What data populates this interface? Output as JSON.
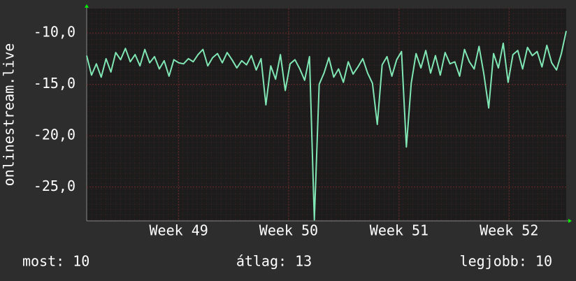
{
  "chart_data": {
    "type": "line",
    "ylabel": "onlinestream.live",
    "x": [
      0,
      1,
      2,
      3,
      4,
      5,
      6,
      7,
      8,
      9,
      10,
      11,
      12,
      13,
      14,
      15,
      16,
      17,
      18,
      19,
      20,
      21,
      22,
      23,
      24,
      25,
      26,
      27,
      28,
      29,
      30,
      31,
      32,
      33,
      34,
      35,
      36,
      37,
      38,
      39,
      40,
      41,
      42,
      43,
      44,
      45,
      46,
      47,
      48,
      49,
      50,
      51,
      52,
      53,
      54,
      55,
      56,
      57,
      58,
      59,
      60,
      61,
      62,
      63,
      64,
      65,
      66,
      67,
      68,
      69,
      70,
      71,
      72,
      73,
      74,
      75,
      76,
      77,
      78,
      79,
      80,
      81,
      82,
      83,
      84,
      85,
      86,
      87,
      88,
      89,
      90,
      91,
      92,
      93,
      94,
      95,
      96,
      97,
      98,
      99
    ],
    "series": [
      {
        "color": "#7fe6b4",
        "values": [
          -12.2,
          -14.1,
          -13.0,
          -14.3,
          -12.5,
          -13.8,
          -11.9,
          -12.6,
          -11.5,
          -12.8,
          -12.1,
          -13.2,
          -11.6,
          -12.9,
          -12.3,
          -13.5,
          -12.7,
          -14.2,
          -12.6,
          -12.9,
          -13.0,
          -12.5,
          -12.8,
          -12.1,
          -11.6,
          -13.2,
          -12.4,
          -12.0,
          -12.9,
          -11.9,
          -12.6,
          -13.4,
          -12.7,
          -13.1,
          -12.2,
          -13.6,
          -12.5,
          -17.0,
          -13.2,
          -14.5,
          -12.1,
          -15.6,
          -13.0,
          -12.6,
          -13.5,
          -14.6,
          -12.3,
          -28.2,
          -15.0,
          -13.9,
          -12.4,
          -14.3,
          -13.5,
          -14.8,
          -12.8,
          -14.0,
          -13.3,
          -12.5,
          -13.9,
          -14.9,
          -18.9,
          -13.1,
          -12.3,
          -14.2,
          -12.6,
          -11.8,
          -21.1,
          -14.9,
          -12.0,
          -13.4,
          -11.7,
          -13.9,
          -12.2,
          -14.1,
          -11.9,
          -13.0,
          -12.8,
          -14.2,
          -11.6,
          -12.8,
          -13.5,
          -11.3,
          -14.0,
          -17.3,
          -12.0,
          -13.4,
          -11.0,
          -14.8,
          -12.1,
          -11.7,
          -13.5,
          -11.4,
          -12.2,
          -11.8,
          -13.3,
          -11.2,
          -12.9,
          -13.6,
          -12.0,
          -9.8
        ]
      }
    ],
    "xlim": [
      0,
      99
    ],
    "xticks": [
      {
        "value": 19,
        "label": "Week 49"
      },
      {
        "value": 41.7,
        "label": "Week 50"
      },
      {
        "value": 64.5,
        "label": "Week 51"
      },
      {
        "value": 87.2,
        "label": "Week 52"
      }
    ],
    "ylim": [
      -28.3,
      -7.6
    ],
    "yticks": [
      {
        "value": -10,
        "label": "-10,0"
      },
      {
        "value": -15,
        "label": "-15,0"
      },
      {
        "value": -20,
        "label": "-20,0"
      },
      {
        "value": -25,
        "label": "-25,0"
      }
    ],
    "grid": true
  },
  "summary": [
    "most: 10",
    "átlag: 13",
    "legjobb: 10"
  ]
}
